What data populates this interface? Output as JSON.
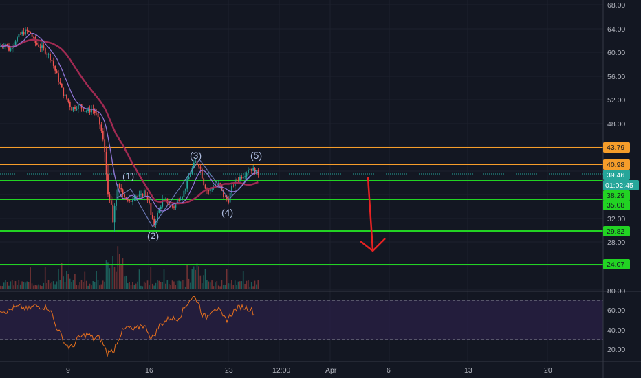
{
  "price_axis": {
    "ticks": [
      "68.00",
      "64.00",
      "60.00",
      "56.00",
      "52.00",
      "48.00",
      "32.00",
      "28.00"
    ]
  },
  "rsi_axis": {
    "ticks": [
      "80.00",
      "60.00",
      "40.00",
      "20.00"
    ]
  },
  "time_axis": {
    "labels": [
      "9",
      "16",
      "23",
      "12:00",
      "Apr",
      "6",
      "13",
      "20"
    ]
  },
  "price_labels": [
    {
      "text": "43.79",
      "bg": "#f59d2a",
      "fg": "#131722"
    },
    {
      "text": "40.98",
      "bg": "#f59d2a",
      "fg": "#131722"
    },
    {
      "text": "39.46",
      "bg": "#26a69a",
      "fg": "#ffffff"
    },
    {
      "text": "01:02:45",
      "bg": "#26a69a",
      "fg": "#ffffff"
    },
    {
      "text": "38.29",
      "bg": "#22d323",
      "fg": "#131722"
    },
    {
      "text": "35.08",
      "bg": "#22d323",
      "fg": "#131722"
    },
    {
      "text": "29.82",
      "bg": "#22d323",
      "fg": "#131722"
    },
    {
      "text": "24.07",
      "bg": "#22d323",
      "fg": "#131722"
    }
  ],
  "wave_labels": [
    "(1)",
    "(2)",
    "(3)",
    "(4)",
    "(5)"
  ],
  "colors": {
    "background": "#131722",
    "resistance": "#f59d2a",
    "support": "#22d323",
    "up_candle": "#26a69a",
    "down_candle": "#ef5350",
    "ma_fast": "#8f74d4",
    "ma_slow": "#a12a52",
    "rsi_line": "#e8711e",
    "rsi_band": "#2a2045",
    "arrow": "#e62222"
  },
  "chart_data": {
    "type": "candlestick",
    "resistance_levels": [
      43.79,
      40.98
    ],
    "last_price": 39.46,
    "countdown": "01:02:45",
    "support_levels": [
      38.29,
      35.08,
      29.82,
      24.07
    ],
    "y_range": [
      20,
      70
    ],
    "rsi_range": [
      10,
      85
    ],
    "rsi_bands": [
      70,
      30
    ],
    "wave_points": [
      {
        "label": "(1)",
        "price": 37.0
      },
      {
        "label": "(2)",
        "price": 30.5
      },
      {
        "label": "(3)",
        "price": 41.8
      },
      {
        "label": "(4)",
        "price": 35.5
      },
      {
        "label": "(5)",
        "price": 41.0
      }
    ]
  }
}
